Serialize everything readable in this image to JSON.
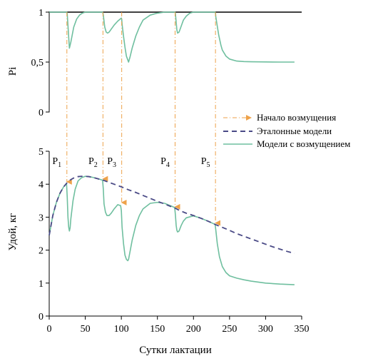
{
  "colors": {
    "reference": "#4a4a86",
    "perturbed": "#6fbf9f",
    "onset": "#eea24a",
    "axis": "#000000"
  },
  "chart_data": [
    {
      "type": "line",
      "panel": "top",
      "ylabel": "Pi",
      "xlim": [
        0,
        350
      ],
      "ylim": [
        0,
        1
      ],
      "yticks": [
        "0",
        "0,5",
        "1"
      ],
      "grid": false,
      "series": [
        {
          "name": "Эталонные модели",
          "style": "solid-black",
          "x": [
            0,
            350
          ],
          "y": [
            1,
            1
          ]
        },
        {
          "name": "Модели с возмущением",
          "style": "solid",
          "x": [
            0,
            24.5,
            25,
            27,
            28,
            30,
            34,
            38,
            42,
            46,
            50,
            60,
            70,
            72,
            74,
            74.5,
            75,
            77,
            79,
            81,
            83,
            86,
            90,
            95,
            100,
            100.5,
            101,
            103,
            105,
            107,
            109,
            110,
            112,
            115,
            120,
            125,
            130,
            140,
            150,
            160,
            170,
            173,
            174,
            174.5,
            175,
            176,
            177,
            178,
            180,
            183,
            186,
            190,
            195,
            200,
            210,
            220,
            230,
            230.5,
            231,
            233,
            235,
            238,
            240,
            245,
            250,
            260,
            270,
            280,
            290,
            300,
            320,
            340
          ],
          "y": [
            1,
            1,
            0.98,
            0.75,
            0.64,
            0.7,
            0.85,
            0.93,
            0.97,
            0.99,
            1,
            1,
            1,
            1,
            1,
            0.99,
            0.97,
            0.85,
            0.8,
            0.79,
            0.8,
            0.83,
            0.87,
            0.91,
            0.94,
            0.93,
            0.88,
            0.76,
            0.65,
            0.56,
            0.52,
            0.5,
            0.55,
            0.64,
            0.76,
            0.85,
            0.92,
            0.97,
            0.99,
            1,
            1,
            1,
            1,
            1,
            0.98,
            0.9,
            0.82,
            0.79,
            0.8,
            0.86,
            0.92,
            0.96,
            0.99,
            1,
            1,
            1,
            1,
            0.99,
            0.95,
            0.86,
            0.77,
            0.67,
            0.62,
            0.56,
            0.53,
            0.51,
            0.505,
            0.503,
            0.502,
            0.501,
            0.5,
            0.5
          ]
        }
      ],
      "onsets": [
        {
          "x": 24.5,
          "y_top": 1,
          "label": "1"
        },
        {
          "x": 74.5,
          "y_top": 1,
          "label": "2"
        },
        {
          "x": 100.5,
          "y_top": 1,
          "label": "3"
        },
        {
          "x": 174.5,
          "y_top": 1,
          "label": "4"
        },
        {
          "x": 230.5,
          "y_top": 1,
          "label": "5"
        }
      ]
    },
    {
      "type": "line",
      "panel": "bottom",
      "xlabel": "Сутки лактации",
      "ylabel": "Удой, кг",
      "xlim": [
        0,
        350
      ],
      "ylim": [
        0,
        5
      ],
      "xticks": [
        0,
        50,
        100,
        150,
        200,
        250,
        300,
        350
      ],
      "yticks": [
        0,
        1,
        2,
        3,
        4,
        5
      ],
      "grid": false,
      "legend": "top-right",
      "series": [
        {
          "name": "Эталонные модели",
          "style": "dashed",
          "x": [
            0,
            5,
            10,
            15,
            20,
            25,
            30,
            35,
            40,
            45,
            50,
            55,
            60,
            70,
            75,
            80,
            90,
            100,
            110,
            120,
            130,
            140,
            150,
            160,
            170,
            175,
            180,
            190,
            200,
            210,
            220,
            230,
            240,
            250,
            260,
            270,
            280,
            290,
            300,
            310,
            320,
            330,
            340
          ],
          "y": [
            2.45,
            3.05,
            3.45,
            3.73,
            3.92,
            4.05,
            4.14,
            4.2,
            4.23,
            4.24,
            4.24,
            4.23,
            4.21,
            4.15,
            4.12,
            4.08,
            4.0,
            3.92,
            3.83,
            3.75,
            3.66,
            3.57,
            3.48,
            3.4,
            3.31,
            3.27,
            3.21,
            3.12,
            3.05,
            2.97,
            2.88,
            2.78,
            2.69,
            2.6,
            2.5,
            2.42,
            2.34,
            2.26,
            2.18,
            2.1,
            2.03,
            1.96,
            1.9
          ]
        },
        {
          "name": "Модели с возмущением",
          "style": "solid",
          "x": [
            0,
            5,
            10,
            15,
            20,
            24,
            25,
            26,
            27,
            28,
            29,
            30,
            33,
            36,
            40,
            45,
            50,
            55,
            60,
            70,
            74,
            75,
            76,
            78,
            80,
            83,
            86,
            90,
            95,
            99,
            100,
            101,
            103,
            105,
            107,
            109,
            110,
            112,
            115,
            120,
            125,
            130,
            140,
            150,
            160,
            170,
            174,
            175,
            176,
            177,
            178,
            180,
            183,
            186,
            190,
            200,
            210,
            220,
            230,
            231,
            233,
            236,
            240,
            245,
            250,
            260,
            270,
            280,
            290,
            300,
            320,
            340
          ],
          "y": [
            2.45,
            3.05,
            3.45,
            3.73,
            3.92,
            4.03,
            3.6,
            3.0,
            2.7,
            2.58,
            2.68,
            2.95,
            3.5,
            3.85,
            4.1,
            4.2,
            4.24,
            4.23,
            4.21,
            4.15,
            4.12,
            3.85,
            3.4,
            3.15,
            3.05,
            3.05,
            3.12,
            3.25,
            3.38,
            3.35,
            3.2,
            2.7,
            2.2,
            1.85,
            1.72,
            1.68,
            1.72,
            1.95,
            2.3,
            2.75,
            3.05,
            3.25,
            3.42,
            3.45,
            3.42,
            3.33,
            3.29,
            3.05,
            2.75,
            2.6,
            2.55,
            2.58,
            2.75,
            2.88,
            2.98,
            3.04,
            2.97,
            2.88,
            2.78,
            2.6,
            2.2,
            1.8,
            1.5,
            1.32,
            1.22,
            1.15,
            1.1,
            1.06,
            1.03,
            1.0,
            0.97,
            0.95
          ]
        }
      ],
      "onset_marks": [
        {
          "x": 24.5,
          "y": 4.03,
          "label": "1"
        },
        {
          "x": 74.5,
          "y": 4.12,
          "label": "2"
        },
        {
          "x": 100.5,
          "y": 3.4,
          "label": "3"
        },
        {
          "x": 174.5,
          "y": 3.27,
          "label": "4"
        },
        {
          "x": 230.5,
          "y": 2.78,
          "label": "5"
        }
      ],
      "p_letter": "P",
      "legend_items": [
        {
          "name": "Начало возмущения",
          "style": "dashdot-arrow"
        },
        {
          "name": "Эталонные модели",
          "style": "dashed"
        },
        {
          "name": "Модели с возмущением",
          "style": "solid"
        }
      ]
    }
  ]
}
